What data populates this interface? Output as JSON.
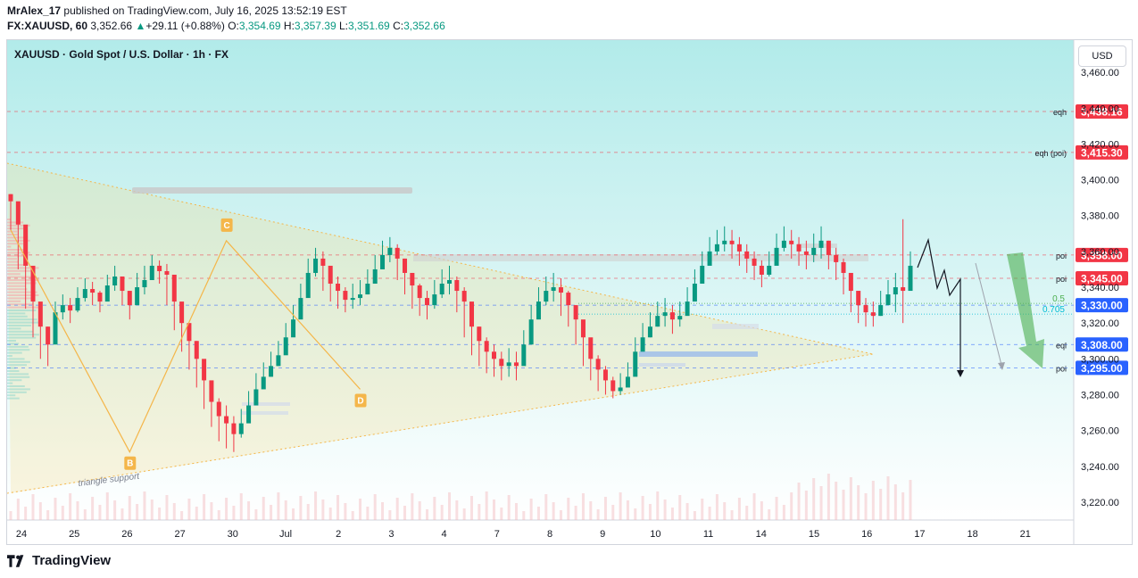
{
  "header": {
    "author": "MrAlex_17",
    "published_text": "published on TradingView.com, July 16, 2025 13:52:19 EST",
    "symbol": "FX:XAUUSD, 60",
    "last": "3,352.66",
    "change_arrow": "▲",
    "change": "+29.11 (+0.88%)",
    "o_label": "O:",
    "o": "3,354.69",
    "h_label": "H:",
    "h": "3,357.39",
    "l_label": "L:",
    "l": "3,351.69",
    "c_label": "C:",
    "c": "3,352.66"
  },
  "chart": {
    "legend": "XAUUSD · Gold Spot / U.S. Dollar · 1h · FX",
    "currency_button": "USD"
  },
  "footer": {
    "brand": "TradingView"
  },
  "colors": {
    "up": "#089981",
    "down": "#f23645",
    "bg_top": "#b2ebea",
    "bg_bottom": "#ffffff",
    "red_label": "#f23645",
    "blue_label": "#2962ff",
    "triangle": "#f4b64a",
    "green_arrow": "#4caf50"
  },
  "chart_data": {
    "type": "candlestick",
    "title": "XAUUSD · Gold Spot / U.S. Dollar · 1h · FX",
    "ylim": [
      3210,
      3478
    ],
    "y_ticks": [
      "3,460.00",
      "3,440.00",
      "3,420.00",
      "3,400.00",
      "3,380.00",
      "3,360.00",
      "3,340.00",
      "3,320.00",
      "3,300.00",
      "3,280.00",
      "3,260.00",
      "3,240.00",
      "3,220.00"
    ],
    "y_tick_values": [
      3460,
      3440,
      3420,
      3400,
      3380,
      3360,
      3340,
      3320,
      3300,
      3280,
      3260,
      3240,
      3220
    ],
    "x_ticks": [
      "24",
      "25",
      "26",
      "27",
      "30",
      "Jul",
      "2",
      "3",
      "4",
      "7",
      "8",
      "9",
      "10",
      "11",
      "14",
      "15",
      "16",
      "17",
      "18",
      "21"
    ],
    "price_levels": [
      {
        "label": "eqh",
        "price_label": "3,438.16",
        "value": 3438.16,
        "color": "red"
      },
      {
        "label": "eqh (poi)",
        "price_label": "3,415.30",
        "value": 3415.3,
        "color": "red"
      },
      {
        "label": "poi",
        "price_label": "3,358.00",
        "value": 3358.0,
        "color": "red"
      },
      {
        "label": "poi",
        "price_label": "3,345.00",
        "value": 3345.0,
        "color": "red"
      },
      {
        "label": "",
        "price_label": "3,330.00",
        "value": 3330.0,
        "color": "blue"
      },
      {
        "label": "eql",
        "price_label": "3,308.00",
        "value": 3308.0,
        "color": "blue"
      },
      {
        "label": "poi",
        "price_label": "3,295.00",
        "value": 3295.0,
        "color": "blue"
      }
    ],
    "fib_levels": [
      {
        "label": "0.5",
        "value": 3331
      },
      {
        "label": "0.705",
        "value": 3325
      }
    ],
    "pattern_points": [
      {
        "label": "B",
        "x_index": 16,
        "value": 3248
      },
      {
        "label": "C",
        "x_index": 29,
        "value": 3366
      },
      {
        "label": "D",
        "x_index": 47,
        "value": 3283
      }
    ],
    "annotation": "triangle support",
    "closes": [
      3388,
      3375,
      3352,
      3332,
      3318,
      3308,
      3326,
      3330,
      3327,
      3334,
      3339,
      3337,
      3332,
      3341,
      3346,
      3338,
      3330,
      3340,
      3344,
      3352,
      3349,
      3347,
      3332,
      3320,
      3310,
      3300,
      3288,
      3276,
      3268,
      3264,
      3258,
      3264,
      3274,
      3283,
      3290,
      3296,
      3302,
      3312,
      3322,
      3334,
      3348,
      3356,
      3352,
      3342,
      3338,
      3333,
      3334,
      3336,
      3342,
      3350,
      3358,
      3362,
      3356,
      3348,
      3341,
      3334,
      3330,
      3336,
      3342,
      3344,
      3338,
      3332,
      3318,
      3310,
      3304,
      3300,
      3296,
      3298,
      3296,
      3308,
      3322,
      3332,
      3338,
      3340,
      3337,
      3330,
      3322,
      3312,
      3300,
      3294,
      3288,
      3282,
      3284,
      3290,
      3304,
      3312,
      3318,
      3324,
      3326,
      3322,
      3324,
      3332,
      3342,
      3352,
      3360,
      3364,
      3366,
      3364,
      3360,
      3356,
      3352,
      3347,
      3352,
      3362,
      3366,
      3364,
      3360,
      3358,
      3362,
      3366,
      3358,
      3354,
      3348,
      3338,
      3330,
      3326,
      3324,
      3330,
      3336,
      3340,
      3338,
      3352
    ],
    "highs": [
      3392,
      3382,
      3360,
      3342,
      3326,
      3318,
      3332,
      3336,
      3334,
      3340,
      3345,
      3343,
      3338,
      3347,
      3352,
      3346,
      3338,
      3348,
      3352,
      3358,
      3355,
      3353,
      3342,
      3330,
      3320,
      3310,
      3298,
      3286,
      3278,
      3274,
      3268,
      3272,
      3282,
      3292,
      3298,
      3304,
      3310,
      3320,
      3330,
      3342,
      3356,
      3362,
      3360,
      3350,
      3346,
      3340,
      3342,
      3344,
      3350,
      3358,
      3366,
      3368,
      3364,
      3356,
      3348,
      3342,
      3338,
      3344,
      3350,
      3352,
      3346,
      3340,
      3328,
      3318,
      3312,
      3308,
      3304,
      3306,
      3304,
      3316,
      3330,
      3340,
      3346,
      3348,
      3345,
      3338,
      3330,
      3320,
      3308,
      3302,
      3296,
      3290,
      3292,
      3298,
      3312,
      3320,
      3326,
      3332,
      3334,
      3330,
      3332,
      3340,
      3350,
      3360,
      3368,
      3372,
      3374,
      3372,
      3368,
      3364,
      3360,
      3355,
      3360,
      3370,
      3374,
      3372,
      3368,
      3366,
      3370,
      3374,
      3366,
      3362,
      3356,
      3346,
      3338,
      3334,
      3332,
      3338,
      3344,
      3348,
      3378,
      3360
    ],
    "lows": [
      3372,
      3350,
      3328,
      3312,
      3300,
      3296,
      3316,
      3322,
      3320,
      3326,
      3332,
      3330,
      3326,
      3334,
      3338,
      3330,
      3322,
      3332,
      3336,
      3344,
      3342,
      3330,
      3316,
      3304,
      3294,
      3284,
      3272,
      3262,
      3254,
      3250,
      3248,
      3256,
      3266,
      3276,
      3284,
      3290,
      3296,
      3306,
      3316,
      3328,
      3340,
      3346,
      3338,
      3332,
      3328,
      3326,
      3328,
      3330,
      3336,
      3344,
      3352,
      3354,
      3344,
      3336,
      3328,
      3324,
      3322,
      3328,
      3334,
      3336,
      3326,
      3312,
      3302,
      3296,
      3292,
      3290,
      3288,
      3290,
      3288,
      3300,
      3314,
      3324,
      3330,
      3332,
      3324,
      3318,
      3308,
      3296,
      3288,
      3282,
      3280,
      3278,
      3280,
      3286,
      3298,
      3306,
      3312,
      3318,
      3318,
      3314,
      3318,
      3326,
      3336,
      3346,
      3354,
      3358,
      3360,
      3356,
      3352,
      3348,
      3344,
      3340,
      3346,
      3356,
      3360,
      3356,
      3352,
      3350,
      3354,
      3356,
      3350,
      3344,
      3336,
      3326,
      3320,
      3318,
      3318,
      3324,
      3330,
      3326,
      3320,
      3348
    ]
  }
}
